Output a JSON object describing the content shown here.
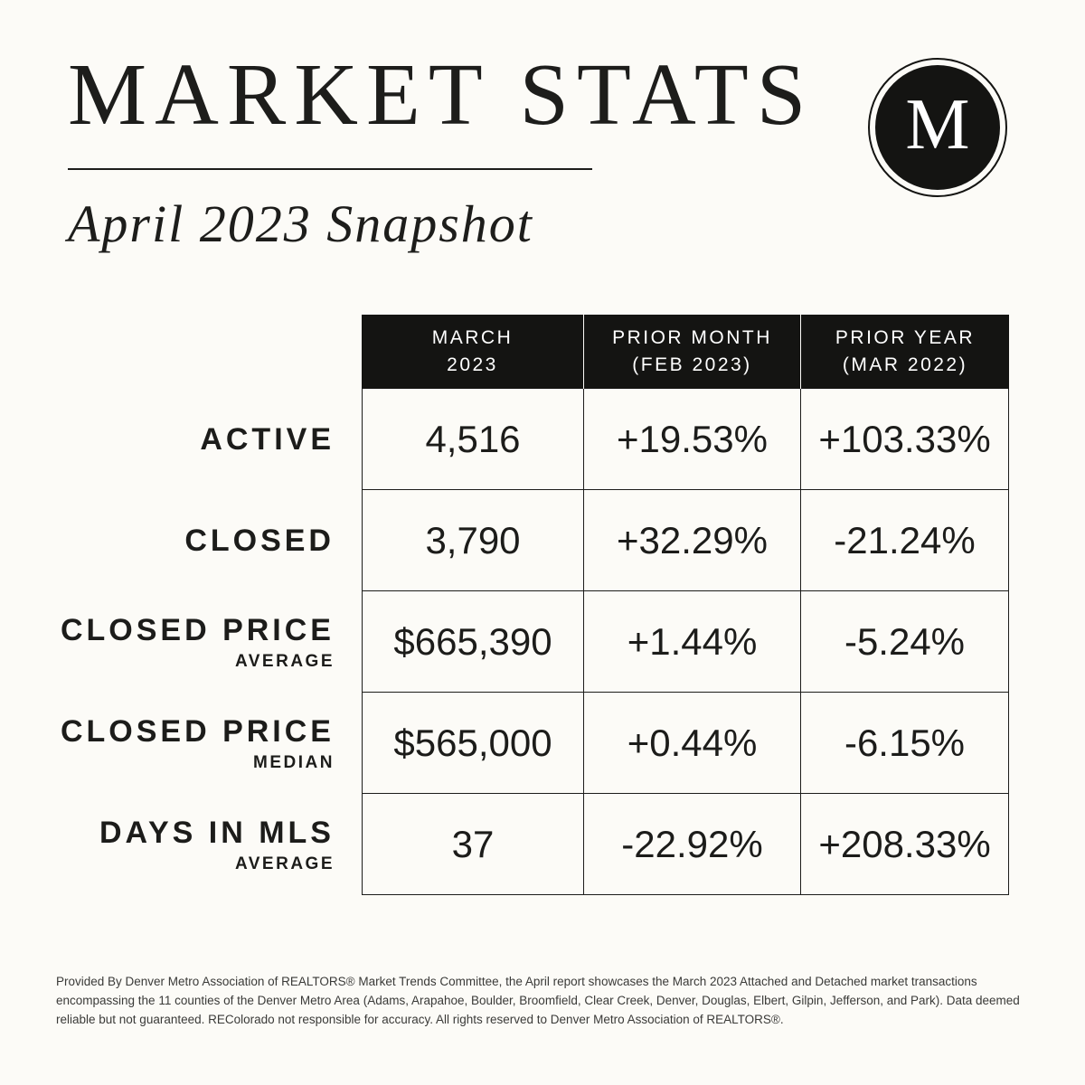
{
  "page": {
    "title": "MARKET STATS",
    "subtitle": "April 2023 Snapshot",
    "logo_letter": "M"
  },
  "colors": {
    "background": "#fcfbf7",
    "ink": "#1c1c1a",
    "header_bg": "#141412",
    "header_text": "#ffffff"
  },
  "table": {
    "columns": [
      {
        "line1": "MARCH",
        "line2": "2023"
      },
      {
        "line1": "PRIOR MONTH",
        "line2": "(FEB 2023)"
      },
      {
        "line1": "PRIOR YEAR",
        "line2": "(MAR 2022)"
      }
    ],
    "rows": [
      {
        "label": "ACTIVE",
        "sublabel": "",
        "values": [
          "4,516",
          "+19.53%",
          "+103.33%"
        ]
      },
      {
        "label": "CLOSED",
        "sublabel": "",
        "values": [
          "3,790",
          "+32.29%",
          "-21.24%"
        ]
      },
      {
        "label": "CLOSED PRICE",
        "sublabel": "AVERAGE",
        "values": [
          "$665,390",
          "+1.44%",
          "-5.24%"
        ]
      },
      {
        "label": "CLOSED PRICE",
        "sublabel": "MEDIAN",
        "values": [
          "$565,000",
          "+0.44%",
          "-6.15%"
        ]
      },
      {
        "label": "DAYS IN MLS",
        "sublabel": "AVERAGE",
        "values": [
          "37",
          "-22.92%",
          "+208.33%"
        ]
      }
    ]
  },
  "chart_data": {
    "type": "table",
    "title": "MARKET STATS — April 2023 Snapshot",
    "columns": [
      "",
      "MARCH 2023",
      "PRIOR MONTH (FEB 2023)",
      "PRIOR YEAR (MAR 2022)"
    ],
    "rows": [
      [
        "ACTIVE",
        "4,516",
        "+19.53%",
        "+103.33%"
      ],
      [
        "CLOSED",
        "3,790",
        "+32.29%",
        "-21.24%"
      ],
      [
        "CLOSED PRICE AVERAGE",
        "$665,390",
        "+1.44%",
        "-5.24%"
      ],
      [
        "CLOSED PRICE MEDIAN",
        "$565,000",
        "+0.44%",
        "-6.15%"
      ],
      [
        "DAYS IN MLS AVERAGE",
        "37",
        "-22.92%",
        "+208.33%"
      ]
    ]
  },
  "footer": {
    "text": "Provided By Denver Metro Association of REALTORS® Market Trends Committee, the April report showcases the March 2023 Attached and Detached market transactions encompassing the 11 counties of the Denver Metro Area (Adams, Arapahoe, Boulder, Broomfield, Clear Creek, Denver, Douglas, Elbert, Gilpin, Jefferson, and Park). Data deemed reliable but not guaranteed. REColorado not responsible for accuracy. All rights reserved to Denver Metro Association of REALTORS®."
  }
}
